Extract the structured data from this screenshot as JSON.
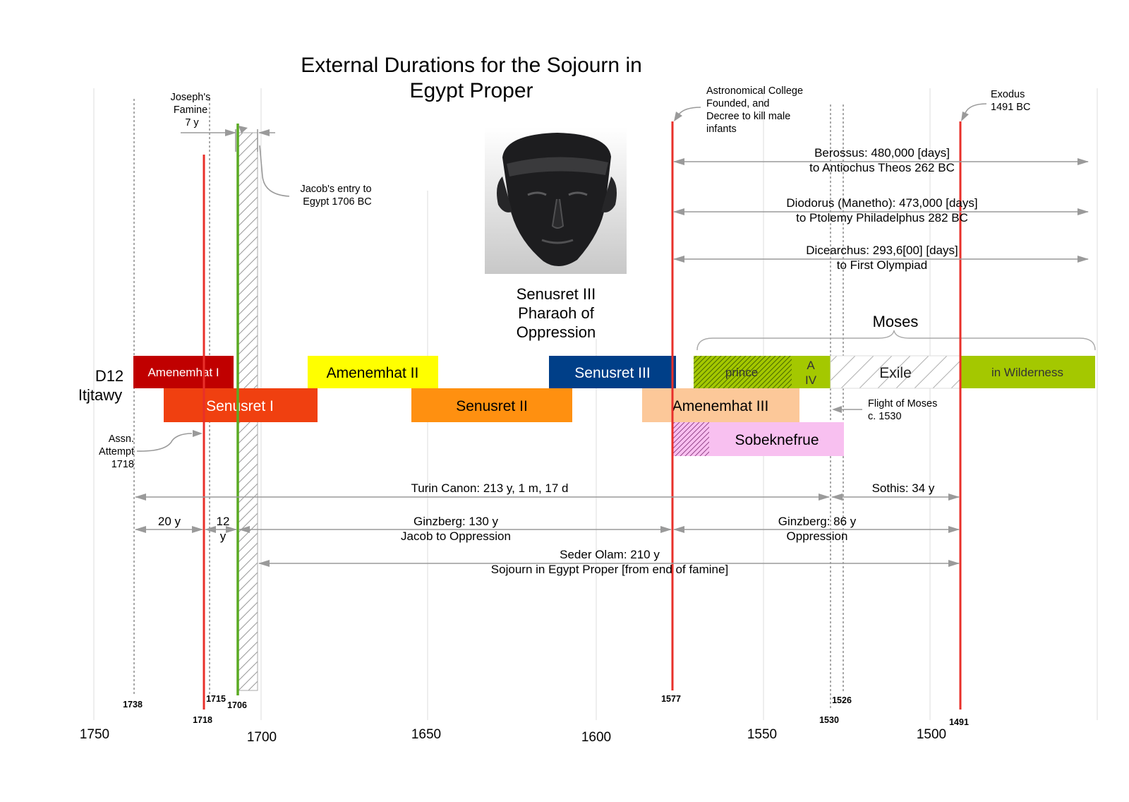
{
  "title": [
    "External Durations for the Sojourn in",
    "Egypt Proper"
  ],
  "dynasty_label": [
    "D12",
    "Itjtawy"
  ],
  "pharaoh_portrait_caption": [
    "Senusret III",
    "Pharaoh of",
    "Oppression"
  ],
  "x_axis_ticks": [
    "1750",
    "1700",
    "1650",
    "1600",
    "1550",
    "1500"
  ],
  "reigns": [
    {
      "label": "Amenemhat I",
      "color": "#c00000",
      "text_color": "#ffffff"
    },
    {
      "label": "Senusret I",
      "color": "#f04010",
      "text_color": "#ffffff"
    },
    {
      "label": "Amenemhat II",
      "color": "#ffff00",
      "text_color": "#000000"
    },
    {
      "label": "Senusret II",
      "color": "#ff9010",
      "text_color": "#000000"
    },
    {
      "label": "Senusret III",
      "color": "#003f88",
      "text_color": "#ffffff"
    },
    {
      "label": "Amenemhat III",
      "color": "#fcc899",
      "text_color": "#000000"
    },
    {
      "label": "Sobeknefrue",
      "color": "#f8c0f0",
      "text_color": "#000000"
    }
  ],
  "moses": {
    "label": "Moses",
    "phases": [
      {
        "label": "prince",
        "color": "#a4c800"
      },
      {
        "label_lines": [
          "A",
          "IV"
        ],
        "color": "#a4c800"
      },
      {
        "label": "Exile",
        "color": "#ffffff"
      },
      {
        "label": "in Wilderness",
        "color": "#a4c800"
      }
    ]
  },
  "event_years": [
    "1738",
    "1718",
    "1715",
    "1706",
    "1577",
    "1530",
    "1526",
    "1491"
  ],
  "annotations": {
    "josephs_famine": [
      "Joseph's",
      "Famine",
      "7 y"
    ],
    "jacobs_entry": [
      "Jacob's entry to",
      "Egypt 1706 BC"
    ],
    "astronomical_college": [
      "Astronomical College",
      "Founded, and",
      "Decree to kill male",
      "infants"
    ],
    "exodus": [
      "Exodus",
      "1491 BC"
    ],
    "flight_of_moses": [
      "Flight of Moses",
      "c. 1530"
    ],
    "assassination_attempt": [
      "Assn.",
      "Attempt",
      "1718"
    ]
  },
  "durations": {
    "berossus": [
      "Berossus: 480,000 [days]",
      "to Antiochus Theos 262 BC"
    ],
    "diodorus": [
      "Diodorus (Manetho): 473,000 [days]",
      "to Ptolemy Philadelphus 282 BC"
    ],
    "dicearchus": [
      "Dicearchus: 293,6[00] [days]",
      "to First Olympiad"
    ],
    "turin_canon": "Turin Canon: 213 y, 1 m, 17 d",
    "sothis": "Sothis: 34 y",
    "span_20y": "20 y",
    "span_12y": [
      "12",
      "y"
    ],
    "ginzberg_130": [
      "Ginzberg: 130 y",
      "Jacob to Oppression"
    ],
    "ginzberg_86": [
      "Ginzberg: 86 y",
      "Oppression"
    ],
    "seder_olam": [
      "Seder Olam: 210 y",
      "Sojourn in Egypt Proper [from end of famine]"
    ]
  },
  "colors": {
    "event_line_red": "#e8302a",
    "jacob_line_green": "#5aaa22",
    "dimension_gray": "#9a9a9a"
  }
}
